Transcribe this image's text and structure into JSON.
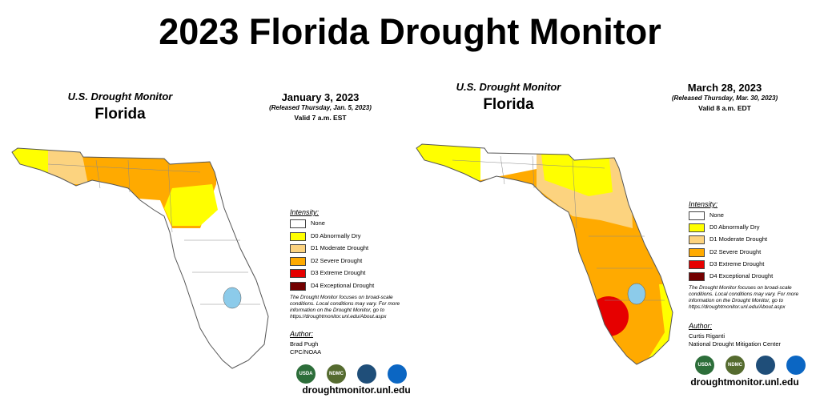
{
  "title": "2023 Florida Drought Monitor",
  "panels": [
    {
      "agency": "U.S. Drought Monitor",
      "state": "Florida",
      "date": "January 3, 2023",
      "released": "(Released Thursday, Jan. 5, 2023)",
      "valid": "Valid 7 a.m. EST",
      "legend": {
        "heading": "Intensity:",
        "items": [
          {
            "label": "None",
            "color": "#ffffff"
          },
          {
            "label": "D0 Abnormally Dry",
            "color": "#ffff00"
          },
          {
            "label": "D1 Moderate Drought",
            "color": "#fcd37f"
          },
          {
            "label": "D2 Severe Drought",
            "color": "#ffaa00"
          },
          {
            "label": "D3 Extreme Drought",
            "color": "#e60000"
          },
          {
            "label": "D4 Exceptional Drought",
            "color": "#730000"
          }
        ]
      },
      "note": "The Drought Monitor focuses on broad-scale conditions. Local conditions may vary. For more information on the Drought Monitor, go to https://droughtmonitor.unl.edu/About.aspx",
      "author": {
        "heading": "Author:",
        "lines": [
          "Brad Pugh",
          "CPC/NOAA"
        ]
      },
      "logos": [
        "USDA",
        "NDMC"
      ],
      "url": "droughtmonitor.unl.edu"
    },
    {
      "agency": "U.S. Drought Monitor",
      "state": "Florida",
      "date": "March 28, 2023",
      "released": "(Released Thursday, Mar. 30, 2023)",
      "valid": "Valid 8 a.m. EDT",
      "legend": {
        "heading": "Intensity:",
        "items": [
          {
            "label": "None",
            "color": "#ffffff"
          },
          {
            "label": "D0 Abnormally Dry",
            "color": "#ffff00"
          },
          {
            "label": "D1 Moderate Drought",
            "color": "#fcd37f"
          },
          {
            "label": "D2 Severe Drought",
            "color": "#ffaa00"
          },
          {
            "label": "D3 Extreme Drought",
            "color": "#e60000"
          },
          {
            "label": "D4 Exceptional Drought",
            "color": "#730000"
          }
        ]
      },
      "note": "The Drought Monitor focuses on broad-scale conditions. Local conditions may vary. For more information on the Drought Monitor, go to https://droughtmonitor.unl.edu/About.aspx",
      "author": {
        "heading": "Author:",
        "lines": [
          "Curtis Riganti",
          "National Drought Mitigation Center"
        ]
      },
      "logos": [
        "USDA",
        "NDMC"
      ],
      "url": "droughtmonitor.unl.edu"
    }
  ]
}
